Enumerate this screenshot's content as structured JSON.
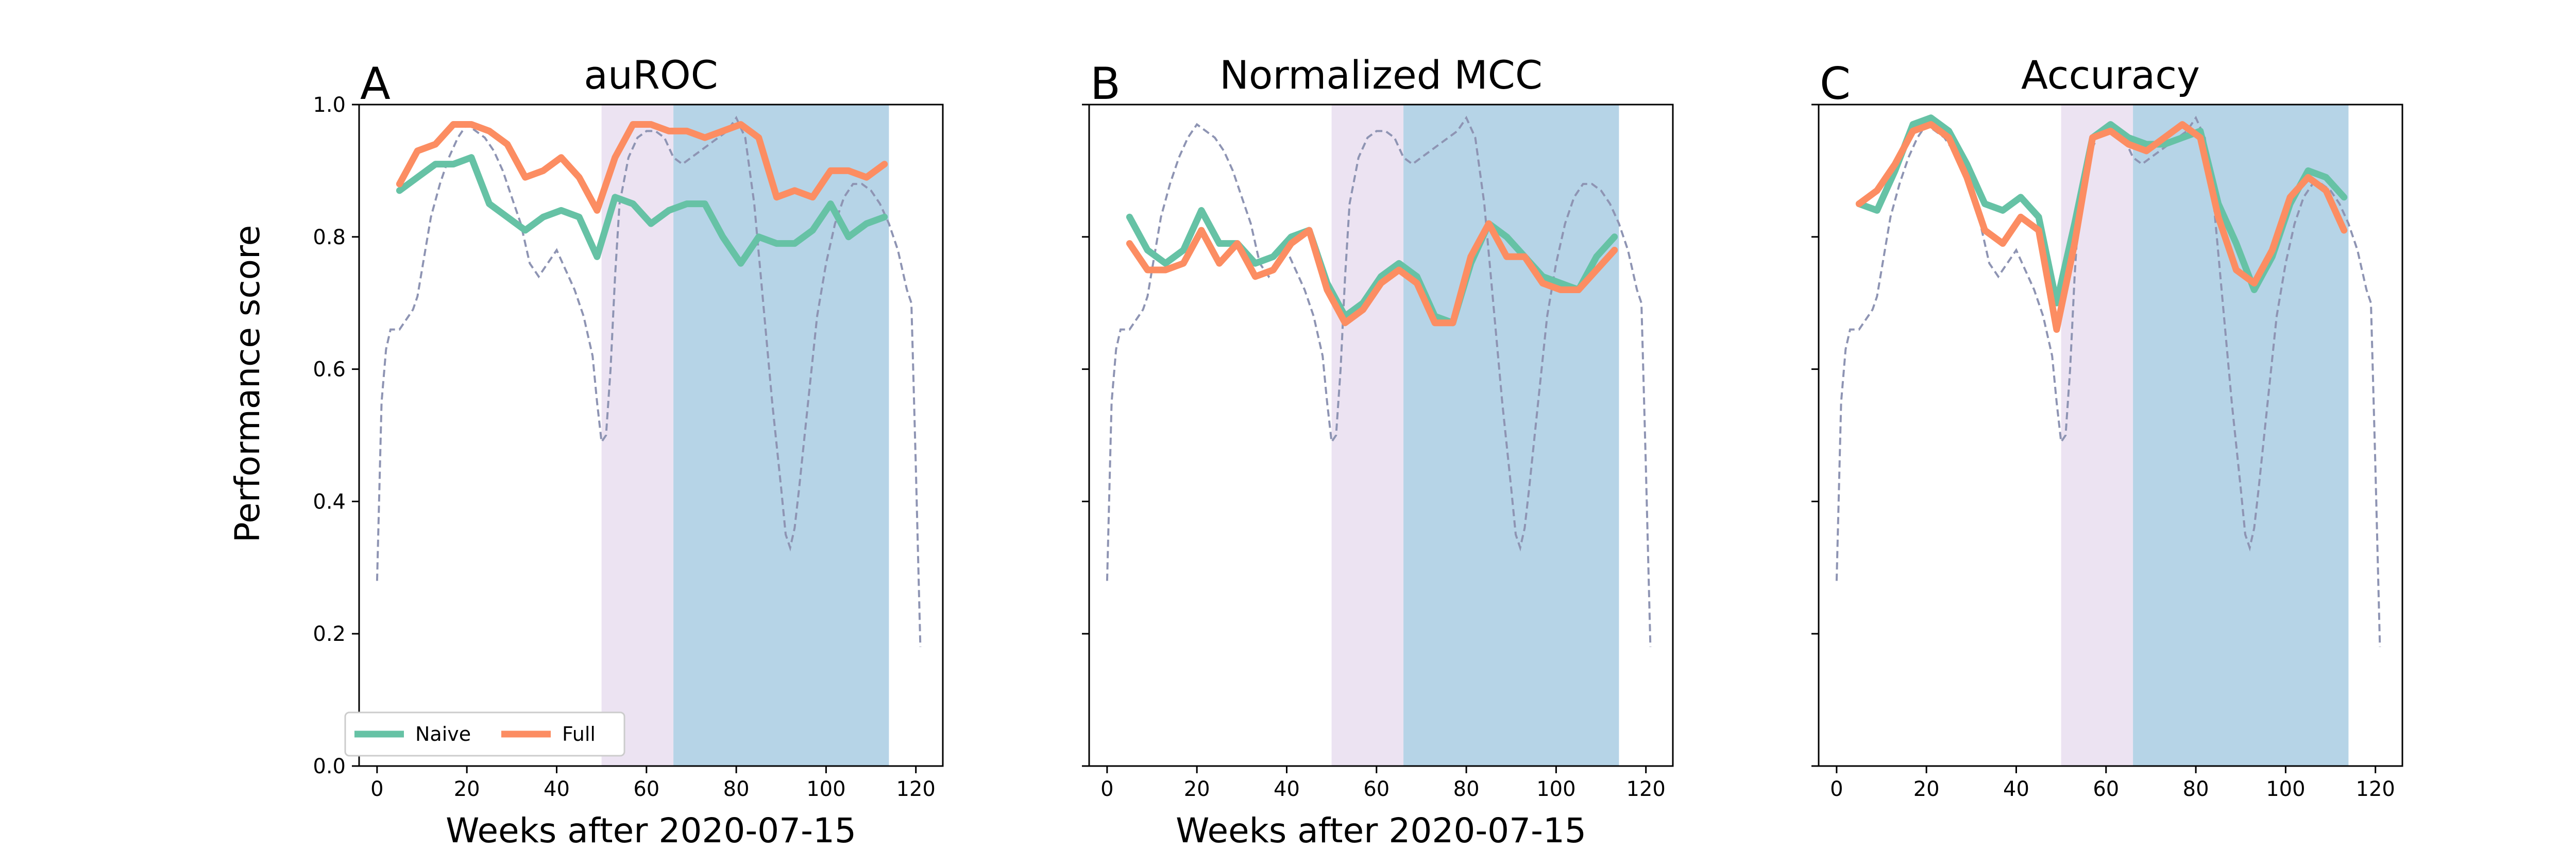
{
  "figure": {
    "ylabel": "Performance score",
    "legend": {
      "placement": "lower-left",
      "entries": [
        "Naive",
        "Full"
      ]
    },
    "colors": {
      "naive": "#66c2a5",
      "full": "#fc8d62",
      "background_curve": "#8e94b3",
      "shade_first": "#e6d9ee",
      "shade_second": "#a9cce3"
    }
  },
  "chart_data": [
    {
      "type": "line",
      "letter": "A",
      "title": "auROC",
      "xlabel": "Weeks after 2020-07-15",
      "ylabel": "Performance score",
      "xlim": [
        -4,
        126
      ],
      "ylim": [
        0,
        1.0
      ],
      "xticks": [
        0,
        20,
        40,
        60,
        80,
        100,
        120
      ],
      "yticks": [
        "0.0",
        "0.2",
        "0.4",
        "0.6",
        "0.8",
        "1.0"
      ],
      "show_ytick_labels": true,
      "show_legend": true,
      "shaded_regions": [
        {
          "x": [
            50,
            66
          ],
          "color": "#e6d9ee"
        },
        {
          "x": [
            66,
            114
          ],
          "color": "#a9cce3"
        }
      ],
      "series": [
        {
          "name": "Naive",
          "color": "#66c2a5",
          "x": [
            5,
            9,
            13,
            17,
            21,
            25,
            29,
            33,
            37,
            41,
            45,
            49,
            53,
            57,
            61,
            65,
            69,
            73,
            77,
            81,
            85,
            89,
            93,
            97,
            101,
            105,
            109,
            113
          ],
          "y": [
            0.87,
            0.89,
            0.91,
            0.91,
            0.92,
            0.85,
            0.83,
            0.81,
            0.83,
            0.84,
            0.83,
            0.77,
            0.86,
            0.85,
            0.82,
            0.84,
            0.85,
            0.85,
            0.8,
            0.76,
            0.8,
            0.79,
            0.79,
            0.81,
            0.85,
            0.8,
            0.82,
            0.83
          ]
        },
        {
          "name": "Full",
          "color": "#fc8d62",
          "x": [
            5,
            9,
            13,
            17,
            21,
            25,
            29,
            33,
            37,
            41,
            45,
            49,
            53,
            57,
            61,
            65,
            69,
            73,
            77,
            81,
            85,
            89,
            93,
            97,
            101,
            105,
            109,
            113
          ],
          "y": [
            0.88,
            0.93,
            0.94,
            0.97,
            0.97,
            0.96,
            0.94,
            0.89,
            0.9,
            0.92,
            0.89,
            0.84,
            0.92,
            0.97,
            0.97,
            0.96,
            0.96,
            0.95,
            0.96,
            0.97,
            0.95,
            0.86,
            0.87,
            0.86,
            0.9,
            0.9,
            0.89,
            0.91
          ]
        }
      ],
      "background_curve": {
        "x": [
          0,
          1,
          2,
          3,
          4,
          5,
          6,
          7,
          8,
          9,
          10,
          12,
          14,
          16,
          18,
          20,
          22,
          24,
          26,
          28,
          30,
          32,
          34,
          36,
          38,
          40,
          42,
          44,
          46,
          48,
          49,
          50,
          51,
          52,
          53,
          54,
          56,
          58,
          60,
          62,
          64,
          66,
          68,
          70,
          72,
          74,
          76,
          78,
          80,
          82,
          84,
          86,
          88,
          90,
          91,
          92,
          93,
          94,
          96,
          98,
          100,
          102,
          104,
          106,
          108,
          110,
          112,
          114,
          116,
          118,
          119,
          120,
          121
        ],
        "y": [
          0.28,
          0.55,
          0.63,
          0.66,
          0.66,
          0.66,
          0.67,
          0.68,
          0.69,
          0.71,
          0.75,
          0.83,
          0.88,
          0.92,
          0.95,
          0.97,
          0.96,
          0.95,
          0.93,
          0.9,
          0.86,
          0.82,
          0.76,
          0.74,
          0.76,
          0.78,
          0.75,
          0.72,
          0.68,
          0.62,
          0.55,
          0.49,
          0.5,
          0.6,
          0.74,
          0.85,
          0.92,
          0.95,
          0.96,
          0.96,
          0.95,
          0.92,
          0.91,
          0.92,
          0.93,
          0.94,
          0.95,
          0.96,
          0.98,
          0.95,
          0.85,
          0.7,
          0.55,
          0.42,
          0.35,
          0.33,
          0.36,
          0.42,
          0.55,
          0.68,
          0.76,
          0.82,
          0.86,
          0.88,
          0.88,
          0.87,
          0.85,
          0.82,
          0.78,
          0.72,
          0.7,
          0.45,
          0.18
        ]
      }
    },
    {
      "type": "line",
      "letter": "B",
      "title": "Normalized MCC",
      "xlabel": "Weeks after 2020-07-15",
      "ylabel": "",
      "xlim": [
        -4,
        126
      ],
      "ylim": [
        0,
        1.0
      ],
      "xticks": [
        0,
        20,
        40,
        60,
        80,
        100,
        120
      ],
      "yticks": [
        "0.0",
        "0.2",
        "0.4",
        "0.6",
        "0.8",
        "1.0"
      ],
      "show_ytick_labels": false,
      "show_legend": false,
      "shaded_regions": [
        {
          "x": [
            50,
            66
          ],
          "color": "#e6d9ee"
        },
        {
          "x": [
            66,
            114
          ],
          "color": "#a9cce3"
        }
      ],
      "series": [
        {
          "name": "Naive",
          "color": "#66c2a5",
          "x": [
            5,
            9,
            13,
            17,
            21,
            25,
            29,
            33,
            37,
            41,
            45,
            49,
            53,
            57,
            61,
            65,
            69,
            73,
            77,
            81,
            85,
            89,
            93,
            97,
            101,
            105,
            109,
            113
          ],
          "y": [
            0.83,
            0.78,
            0.76,
            0.78,
            0.84,
            0.79,
            0.79,
            0.76,
            0.77,
            0.8,
            0.81,
            0.73,
            0.68,
            0.7,
            0.74,
            0.76,
            0.74,
            0.68,
            0.67,
            0.76,
            0.82,
            0.8,
            0.77,
            0.74,
            0.73,
            0.72,
            0.77,
            0.8
          ]
        },
        {
          "name": "Full",
          "color": "#fc8d62",
          "x": [
            5,
            9,
            13,
            17,
            21,
            25,
            29,
            33,
            37,
            41,
            45,
            49,
            53,
            57,
            61,
            65,
            69,
            73,
            77,
            81,
            85,
            89,
            93,
            97,
            101,
            105,
            109,
            113
          ],
          "y": [
            0.79,
            0.75,
            0.75,
            0.76,
            0.81,
            0.76,
            0.79,
            0.74,
            0.75,
            0.79,
            0.81,
            0.72,
            0.67,
            0.69,
            0.73,
            0.75,
            0.73,
            0.67,
            0.67,
            0.77,
            0.82,
            0.77,
            0.77,
            0.73,
            0.72,
            0.72,
            0.75,
            0.78
          ]
        }
      ],
      "background_curve": {
        "x": [
          0,
          1,
          2,
          3,
          4,
          5,
          6,
          7,
          8,
          9,
          10,
          12,
          14,
          16,
          18,
          20,
          22,
          24,
          26,
          28,
          30,
          32,
          34,
          36,
          38,
          40,
          42,
          44,
          46,
          48,
          49,
          50,
          51,
          52,
          53,
          54,
          56,
          58,
          60,
          62,
          64,
          66,
          68,
          70,
          72,
          74,
          76,
          78,
          80,
          82,
          84,
          86,
          88,
          90,
          91,
          92,
          93,
          94,
          96,
          98,
          100,
          102,
          104,
          106,
          108,
          110,
          112,
          114,
          116,
          118,
          119,
          120,
          121
        ],
        "y": [
          0.28,
          0.55,
          0.63,
          0.66,
          0.66,
          0.66,
          0.67,
          0.68,
          0.69,
          0.71,
          0.75,
          0.83,
          0.88,
          0.92,
          0.95,
          0.97,
          0.96,
          0.95,
          0.93,
          0.9,
          0.86,
          0.82,
          0.76,
          0.74,
          0.76,
          0.78,
          0.75,
          0.72,
          0.68,
          0.62,
          0.55,
          0.49,
          0.5,
          0.6,
          0.74,
          0.85,
          0.92,
          0.95,
          0.96,
          0.96,
          0.95,
          0.92,
          0.91,
          0.92,
          0.93,
          0.94,
          0.95,
          0.96,
          0.98,
          0.95,
          0.85,
          0.7,
          0.55,
          0.42,
          0.35,
          0.33,
          0.36,
          0.42,
          0.55,
          0.68,
          0.76,
          0.82,
          0.86,
          0.88,
          0.88,
          0.87,
          0.85,
          0.82,
          0.78,
          0.72,
          0.7,
          0.45,
          0.18
        ]
      }
    },
    {
      "type": "line",
      "letter": "C",
      "title": "Accuracy",
      "xlabel": "",
      "ylabel": "",
      "xlim": [
        -4,
        126
      ],
      "ylim": [
        0,
        1.0
      ],
      "xticks": [
        0,
        20,
        40,
        60,
        80,
        100,
        120
      ],
      "yticks": [
        "0.0",
        "0.2",
        "0.4",
        "0.6",
        "0.8",
        "1.0"
      ],
      "show_ytick_labels": false,
      "show_legend": false,
      "shaded_regions": [
        {
          "x": [
            50,
            66
          ],
          "color": "#e6d9ee"
        },
        {
          "x": [
            66,
            114
          ],
          "color": "#a9cce3"
        }
      ],
      "series": [
        {
          "name": "Naive",
          "color": "#66c2a5",
          "x": [
            5,
            9,
            13,
            17,
            21,
            25,
            29,
            33,
            37,
            41,
            45,
            49,
            53,
            57,
            61,
            65,
            69,
            73,
            77,
            81,
            85,
            89,
            93,
            97,
            101,
            105,
            109,
            113
          ],
          "y": [
            0.85,
            0.84,
            0.9,
            0.97,
            0.98,
            0.96,
            0.91,
            0.85,
            0.84,
            0.86,
            0.83,
            0.7,
            0.82,
            0.95,
            0.97,
            0.95,
            0.94,
            0.94,
            0.95,
            0.96,
            0.85,
            0.79,
            0.72,
            0.77,
            0.85,
            0.9,
            0.89,
            0.86
          ]
        },
        {
          "name": "Full",
          "color": "#fc8d62",
          "x": [
            5,
            9,
            13,
            17,
            21,
            25,
            29,
            33,
            37,
            41,
            45,
            49,
            53,
            57,
            61,
            65,
            69,
            73,
            77,
            81,
            85,
            89,
            93,
            97,
            101,
            105,
            109,
            113
          ],
          "y": [
            0.85,
            0.87,
            0.91,
            0.96,
            0.97,
            0.95,
            0.89,
            0.81,
            0.79,
            0.83,
            0.81,
            0.66,
            0.79,
            0.95,
            0.96,
            0.94,
            0.93,
            0.95,
            0.97,
            0.95,
            0.83,
            0.75,
            0.73,
            0.78,
            0.86,
            0.89,
            0.87,
            0.81
          ]
        }
      ],
      "background_curve": {
        "x": [
          0,
          1,
          2,
          3,
          4,
          5,
          6,
          7,
          8,
          9,
          10,
          12,
          14,
          16,
          18,
          20,
          22,
          24,
          26,
          28,
          30,
          32,
          34,
          36,
          38,
          40,
          42,
          44,
          46,
          48,
          49,
          50,
          51,
          52,
          53,
          54,
          56,
          58,
          60,
          62,
          64,
          66,
          68,
          70,
          72,
          74,
          76,
          78,
          80,
          82,
          84,
          86,
          88,
          90,
          91,
          92,
          93,
          94,
          96,
          98,
          100,
          102,
          104,
          106,
          108,
          110,
          112,
          114,
          116,
          118,
          119,
          120,
          121
        ],
        "y": [
          0.28,
          0.55,
          0.63,
          0.66,
          0.66,
          0.66,
          0.67,
          0.68,
          0.69,
          0.71,
          0.75,
          0.83,
          0.88,
          0.92,
          0.95,
          0.97,
          0.96,
          0.95,
          0.93,
          0.9,
          0.86,
          0.82,
          0.76,
          0.74,
          0.76,
          0.78,
          0.75,
          0.72,
          0.68,
          0.62,
          0.55,
          0.49,
          0.5,
          0.6,
          0.74,
          0.85,
          0.92,
          0.95,
          0.96,
          0.96,
          0.95,
          0.92,
          0.91,
          0.92,
          0.93,
          0.94,
          0.95,
          0.96,
          0.98,
          0.95,
          0.85,
          0.7,
          0.55,
          0.42,
          0.35,
          0.33,
          0.36,
          0.42,
          0.55,
          0.68,
          0.76,
          0.82,
          0.86,
          0.88,
          0.88,
          0.87,
          0.85,
          0.82,
          0.78,
          0.72,
          0.7,
          0.45,
          0.18
        ]
      }
    }
  ]
}
